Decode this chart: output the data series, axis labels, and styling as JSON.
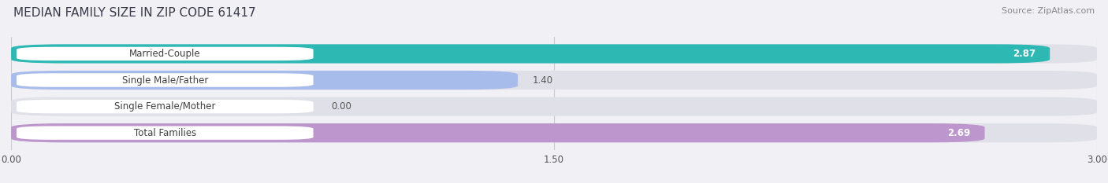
{
  "title": "MEDIAN FAMILY SIZE IN ZIP CODE 61417",
  "source": "Source: ZipAtlas.com",
  "categories": [
    "Married-Couple",
    "Single Male/Father",
    "Single Female/Mother",
    "Total Families"
  ],
  "values": [
    2.87,
    1.4,
    0.0,
    2.69
  ],
  "bar_colors": [
    "#2db8b4",
    "#a8bcec",
    "#f2a8bc",
    "#bc96cc"
  ],
  "track_color": "#e0e0e8",
  "xlim": [
    0,
    3.0
  ],
  "xticks": [
    0.0,
    1.5,
    3.0
  ],
  "xtick_labels": [
    "0.00",
    "1.50",
    "3.00"
  ],
  "bar_height": 0.72,
  "label_fontsize": 8.5,
  "title_fontsize": 11,
  "value_fontsize": 8.5,
  "source_fontsize": 8,
  "background_color": "#f0f0f5",
  "label_box_color": "white",
  "label_text_color": "#404040",
  "value_color_inside": "white",
  "value_color_outside": "#555555"
}
